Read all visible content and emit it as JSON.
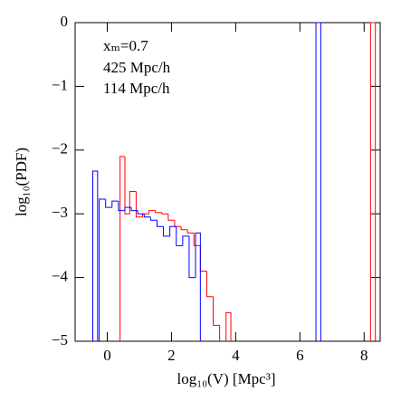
{
  "chart_data": {
    "type": "histogram",
    "xlabel": "log₁₀(V) [Mpc³]",
    "ylabel": "log₁₀(PDF)",
    "annotations": [
      "xₘ=0.7"
    ],
    "xlim": [
      -1,
      8.5
    ],
    "ylim": [
      -5,
      0
    ],
    "xticks": [
      0,
      2,
      4,
      6,
      8
    ],
    "yticks": [
      {
        "value": -5,
        "label": "−5"
      },
      {
        "value": -4,
        "label": "−4"
      },
      {
        "value": -3,
        "label": "−3"
      },
      {
        "value": -2,
        "label": "−2"
      },
      {
        "value": -1,
        "label": "−1"
      },
      0
    ],
    "series": [
      {
        "name": "425 Mpc/h",
        "color": "#ff0000",
        "bins": [
          0.4,
          0.55,
          0.7,
          0.9,
          1.1,
          1.3,
          1.5,
          1.7,
          1.9,
          2.1,
          2.3,
          2.5,
          2.7,
          2.9,
          3.1,
          3.3,
          3.5,
          3.7,
          3.85,
          8.2,
          8.35
        ],
        "values": [
          -2.1,
          -3.0,
          -2.65,
          -3.05,
          -3.0,
          -2.95,
          -2.98,
          -3.0,
          -3.1,
          -3.2,
          -3.25,
          -3.3,
          -3.5,
          -3.9,
          -4.3,
          -4.75,
          null,
          -4.55,
          null,
          0
        ]
      },
      {
        "name": "114 Mpc/h",
        "color": "#0000ff",
        "bins": [
          -0.45,
          -0.3,
          -0.25,
          -0.05,
          0.15,
          0.35,
          0.55,
          0.75,
          0.95,
          1.15,
          1.35,
          1.55,
          1.75,
          1.95,
          2.15,
          2.35,
          2.55,
          2.75,
          2.9,
          6.5,
          6.65
        ],
        "values": [
          -2.33,
          null,
          -2.77,
          -2.9,
          -2.8,
          -2.95,
          -2.9,
          -2.95,
          -3.0,
          -3.05,
          -3.1,
          -3.2,
          -3.35,
          -3.2,
          -3.5,
          -3.35,
          -4.0,
          -3.3,
          null,
          0
        ]
      }
    ]
  }
}
